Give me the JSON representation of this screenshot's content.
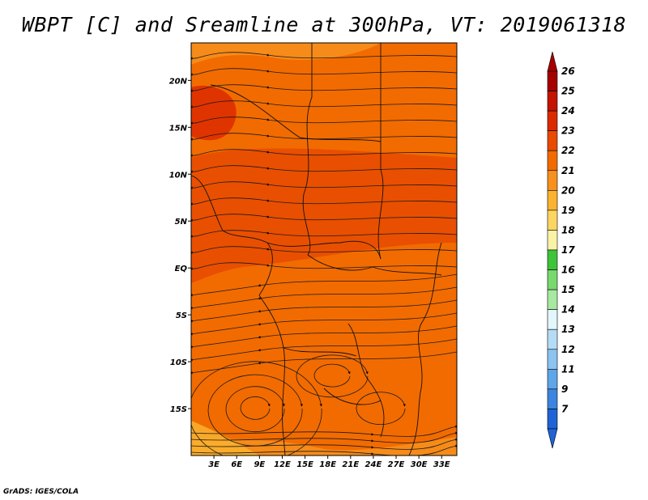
{
  "title": "WBPT [C] and Sreamline at 300hPa, VT: 2019061318",
  "footer": "GrADS: IGES/COLA",
  "map": {
    "lon_range": [
      0,
      35
    ],
    "lat_range": [
      -20,
      24
    ],
    "lat_ticks": [
      {
        "value": 20,
        "label": "20N"
      },
      {
        "value": 15,
        "label": "15N"
      },
      {
        "value": 10,
        "label": "10N"
      },
      {
        "value": 5,
        "label": "5N"
      },
      {
        "value": 0,
        "label": "EQ"
      },
      {
        "value": -5,
        "label": "5S"
      },
      {
        "value": -10,
        "label": "10S"
      },
      {
        "value": -15,
        "label": "15S"
      }
    ],
    "lon_ticks": [
      {
        "value": 3,
        "label": "3E"
      },
      {
        "value": 6,
        "label": "6E"
      },
      {
        "value": 9,
        "label": "9E"
      },
      {
        "value": 12,
        "label": "12E"
      },
      {
        "value": 15,
        "label": "15E"
      },
      {
        "value": 18,
        "label": "18E"
      },
      {
        "value": 21,
        "label": "21E"
      },
      {
        "value": 24,
        "label": "24E"
      },
      {
        "value": 27,
        "label": "27E"
      },
      {
        "value": 30,
        "label": "30E"
      },
      {
        "value": 33,
        "label": "33E"
      }
    ],
    "field": "wet bulb potential temperature",
    "level_hPa": 300
  },
  "colorbar": {
    "labels": [
      "26",
      "25",
      "24",
      "23",
      "22",
      "21",
      "20",
      "19",
      "18",
      "17",
      "16",
      "15",
      "14",
      "13",
      "12",
      "11",
      "9",
      "7"
    ],
    "colors": [
      "#a50000",
      "#c21400",
      "#dc2a00",
      "#e84a00",
      "#f26b00",
      "#f7901d",
      "#fbb22e",
      "#fdd563",
      "#fcf2a6",
      "#3dc43a",
      "#77d86e",
      "#a8e8a0",
      "#e2f6fb",
      "#b4dcf5",
      "#8cc3f0",
      "#5ea6e8",
      "#3c85df",
      "#1f63d6"
    ]
  }
}
